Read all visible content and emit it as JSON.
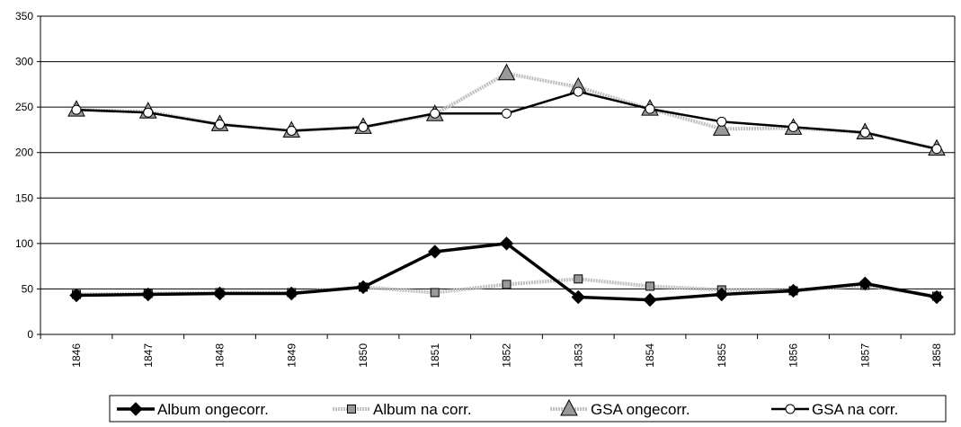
{
  "chart_data": {
    "type": "line",
    "categories": [
      "1846",
      "1847",
      "1848",
      "1849",
      "1850",
      "1851",
      "1852",
      "1853",
      "1854",
      "1855",
      "1856",
      "1857",
      "1858"
    ],
    "series": [
      {
        "name": "Album ongecorr.",
        "color": "#000000",
        "marker": "diamond",
        "values": [
          43,
          44,
          45,
          45,
          52,
          91,
          100,
          41,
          38,
          44,
          48,
          56,
          41
        ]
      },
      {
        "name": "Album na corr.",
        "color": "#c0c0c0",
        "marker": "square",
        "values": [
          44,
          45,
          46,
          46,
          52,
          46,
          55,
          61,
          53,
          49,
          48,
          54,
          42
        ]
      },
      {
        "name": "GSA ongecorr.",
        "color": "#c0c0c0",
        "marker": "triangle",
        "values": [
          247,
          245,
          231,
          224,
          228,
          242,
          287,
          272,
          248,
          226,
          227,
          222,
          204
        ]
      },
      {
        "name": "GSA na corr.",
        "color": "#000000",
        "marker": "circle",
        "values": [
          247,
          244,
          231,
          224,
          228,
          243,
          243,
          267,
          248,
          234,
          228,
          222,
          204
        ]
      }
    ],
    "ylim": [
      0,
      350
    ],
    "yticks": [
      0,
      50,
      100,
      150,
      200,
      250,
      300,
      350
    ],
    "grid": true,
    "legend": "bottom"
  }
}
